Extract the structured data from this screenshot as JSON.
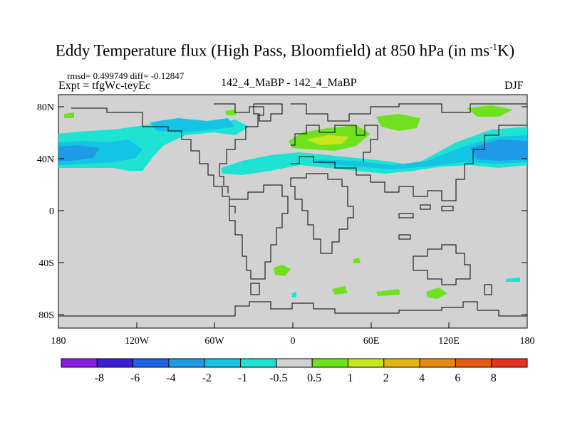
{
  "title": {
    "main": "Eddy Temperature flux (High Pass, Bloomfield) at 850 hPa (in ms",
    "sup": "-1",
    "tail": "K)"
  },
  "stats": "rmsd= 0.499749  diff= -0.12847",
  "expt": "Expt = tfgWc-teyEc",
  "center_label": "142_4_MaBP - 142_4_MaBP",
  "season": "DJF",
  "lat_labels": [
    "80N",
    "40N",
    "0",
    "40S",
    "80S"
  ],
  "lon_labels": [
    "180",
    "120W",
    "60W",
    "0",
    "60E",
    "120E",
    "180"
  ],
  "colorbar": {
    "labels": [
      "-8",
      "-6",
      "-4",
      "-2",
      "-1",
      "-0.5",
      "0.5",
      "1",
      "2",
      "4",
      "6",
      "8"
    ],
    "colors": [
      "#8a1ee0",
      "#3c1ed6",
      "#1e64e6",
      "#1e9ae6",
      "#14c4e6",
      "#1ee2d2",
      "#d2d2d2",
      "#6ee21e",
      "#c8e61e",
      "#e6b414",
      "#e68a14",
      "#e65a14",
      "#e6321e"
    ]
  },
  "colors": {
    "land_bg": "#d2d2d2",
    "coast": "#000000"
  }
}
